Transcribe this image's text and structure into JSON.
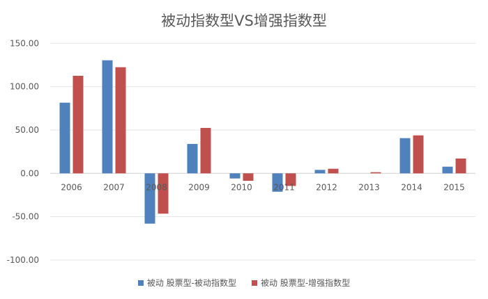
{
  "chart_data": {
    "type": "bar",
    "title": "被动指数型VS增强指数型",
    "categories": [
      "2006",
      "2007",
      "2008",
      "2009",
      "2010",
      "2011",
      "2012",
      "2013",
      "2014",
      "2015"
    ],
    "series": [
      {
        "name": "被动 股票型-被动指数型",
        "color": "#4f81bd",
        "values": [
          81.5,
          130.4,
          -58.0,
          33.9,
          -5.9,
          -21.2,
          4.0,
          0.0,
          40.6,
          7.7
        ]
      },
      {
        "name": "被动 股票型-增强指数型",
        "color": "#c0504d",
        "values": [
          112.5,
          122.4,
          -46.5,
          52.4,
          -8.6,
          -14.5,
          5.3,
          1.3,
          43.8,
          17.1
        ]
      }
    ],
    "yticks": [
      "150.00",
      "100.00",
      "50.00",
      "0.00",
      "-50.00",
      "-100.00"
    ],
    "ylim": [
      -100,
      150
    ],
    "grid": true,
    "legend": "bottom"
  }
}
